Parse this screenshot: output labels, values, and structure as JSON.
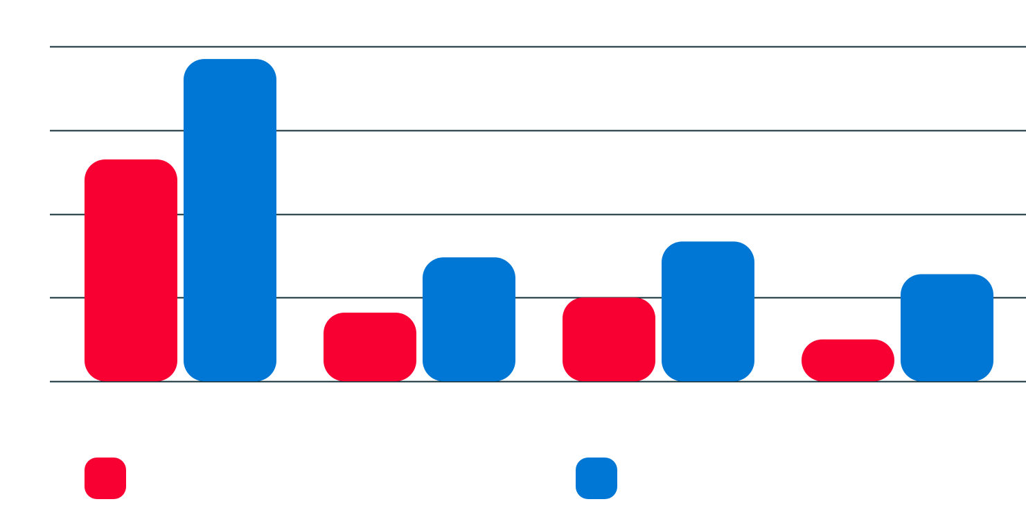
{
  "chart_data": {
    "type": "bar",
    "title": "",
    "xlabel": "",
    "ylabel": "",
    "categories": [
      "",
      "",
      "",
      ""
    ],
    "series": [
      {
        "color": "#f80032",
        "values": [
          2.65,
          0.82,
          1.0,
          0.5
        ]
      },
      {
        "color": "#0077d4",
        "values": [
          3.85,
          1.48,
          1.67,
          1.28
        ]
      }
    ],
    "ylim": [
      0,
      4
    ],
    "grid": true,
    "legend": {
      "placement": "bottom"
    }
  }
}
